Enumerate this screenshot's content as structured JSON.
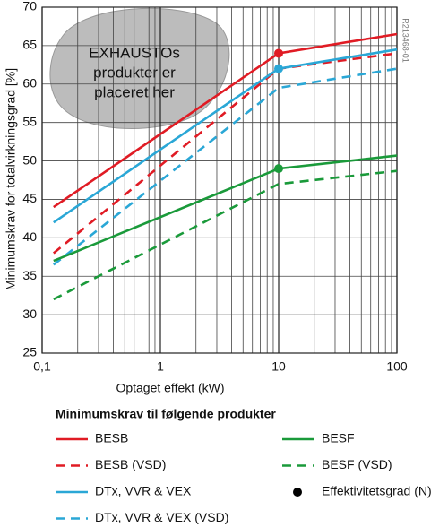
{
  "chart_data": {
    "type": "line",
    "x_label": "Optaget effekt (kW)",
    "y_label": "Minimumskrav for totalvirkningsgrad [%]",
    "x_log": true,
    "xlim": [
      0.1,
      100
    ],
    "xticks": [
      {
        "value": 0.1,
        "label": "0,1"
      },
      1,
      10,
      100
    ],
    "x_minor_ticks": [
      0.2,
      0.3,
      0.4,
      0.5,
      0.6,
      0.7,
      0.8,
      0.9,
      2,
      3,
      4,
      5,
      6,
      7,
      8,
      9,
      20,
      30,
      40,
      50,
      60,
      70,
      80,
      90
    ],
    "ylim": [
      25,
      70
    ],
    "yticks": [
      25,
      30,
      35,
      40,
      45,
      50,
      55,
      60,
      65,
      70
    ],
    "grid": true,
    "legend_title": "Minimumskrav til følgende produkter",
    "annotations": [
      "EXHAUSTOs",
      "produkter er",
      "placeret her"
    ],
    "figure_code": "R213468-01",
    "series": [
      {
        "name": "BESB",
        "color": "#e01b24",
        "dashed": false,
        "x": [
          0.125,
          10,
          100
        ],
        "values": [
          44,
          64,
          66.5
        ]
      },
      {
        "name": "BESB (VSD)",
        "color": "#e01b24",
        "dashed": true,
        "x": [
          0.125,
          10,
          100
        ],
        "values": [
          38,
          62,
          64
        ]
      },
      {
        "name": "DTx, VVR & VEX",
        "color": "#2aa7d6",
        "dashed": false,
        "x": [
          0.125,
          10,
          100
        ],
        "values": [
          42,
          62,
          64.5
        ]
      },
      {
        "name": "DTx, VVR & VEX (VSD)",
        "color": "#2aa7d6",
        "dashed": true,
        "x": [
          0.125,
          10,
          100
        ],
        "values": [
          36.5,
          59.5,
          62
        ]
      },
      {
        "name": "BESF",
        "color": "#1a9a3a",
        "dashed": false,
        "x": [
          0.125,
          10,
          100
        ],
        "values": [
          37,
          49,
          50.7
        ]
      },
      {
        "name": "BESF (VSD)",
        "color": "#1a9a3a",
        "dashed": true,
        "x": [
          0.125,
          10,
          100
        ],
        "values": [
          32,
          47,
          48.7
        ]
      },
      {
        "name": "Effektivitetsgrad (N)",
        "type": "scatter",
        "color": "#000000",
        "point_colors": [
          "#e01b24",
          "#2aa7d6",
          "#1a9a3a"
        ],
        "x": [
          10,
          10,
          10
        ],
        "values": [
          64,
          62,
          49
        ]
      }
    ]
  }
}
